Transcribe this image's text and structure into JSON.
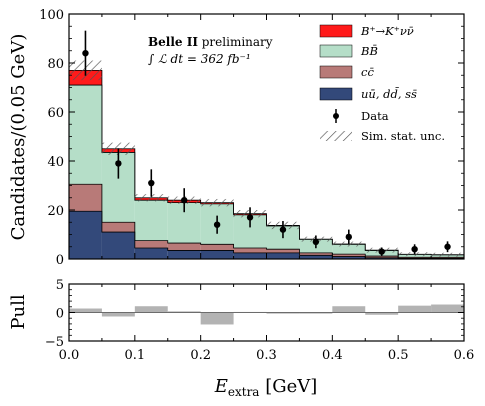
{
  "chart_data": [
    {
      "type": "bar",
      "stacked": true,
      "x_bin_edges": [
        0.0,
        0.05,
        0.1,
        0.15,
        0.2,
        0.25,
        0.3,
        0.35,
        0.4,
        0.45,
        0.5,
        0.55,
        0.6
      ],
      "xlim": [
        0.0,
        0.6
      ],
      "ylim": [
        0,
        100
      ],
      "ylabel": "Candidates/(0.05 GeV)",
      "y_ticks": [
        "0",
        "20",
        "40",
        "60",
        "80",
        "100"
      ],
      "annotation": {
        "line1_bold": "Belle II",
        "line1_rest": " preliminary",
        "line2": "∫ ℒ dt = 362 fb⁻¹"
      },
      "series": [
        {
          "name": "uū, dd̄, ss̄",
          "color": "#33497a",
          "values": [
            19.5,
            11.0,
            4.5,
            3.5,
            3.5,
            2.5,
            2.5,
            1.5,
            1.0,
            0.5,
            0.3,
            0.3
          ]
        },
        {
          "name": "cc̄",
          "color": "#b87a78",
          "values": [
            11.0,
            4.0,
            3.0,
            3.0,
            2.5,
            2.0,
            1.5,
            1.0,
            1.0,
            0.7,
            0.4,
            0.4
          ]
        },
        {
          "name": "BB̄",
          "color": "#b5dec8",
          "values": [
            40.5,
            28.5,
            16.5,
            16.5,
            16.5,
            13.5,
            9.5,
            5.5,
            4.0,
            2.3,
            1.2,
            1.0
          ]
        },
        {
          "name": "B⁺→K⁺νν̄",
          "color": "#ff1a1a",
          "values": [
            6.0,
            1.5,
            1.0,
            1.0,
            0.5,
            0.5,
            0.2,
            0.1,
            0.1,
            0.1,
            0.05,
            0.05
          ]
        }
      ],
      "sim_stat_unc": [
        4.0,
        2.5,
        1.5,
        1.5,
        1.5,
        1.5,
        1.5,
        1.0,
        1.0,
        1.0,
        0.8,
        0.8
      ],
      "data": {
        "name": "Data",
        "x": [
          0.025,
          0.075,
          0.125,
          0.175,
          0.225,
          0.275,
          0.325,
          0.375,
          0.425,
          0.475,
          0.525,
          0.575
        ],
        "y": [
          84,
          39,
          31,
          24,
          14,
          17,
          12,
          7,
          9,
          3,
          4,
          5
        ],
        "yerr": [
          9.2,
          6.2,
          5.6,
          4.9,
          3.7,
          4.1,
          3.5,
          2.6,
          3.0,
          1.7,
          2.0,
          2.2
        ]
      },
      "legend": {
        "position": "top-right",
        "entries": [
          "B⁺→K⁺νν̄",
          "BB̄",
          "cc̄",
          "uū, dd̄, ss̄",
          "Data",
          "Sim. stat. unc."
        ]
      }
    },
    {
      "type": "bar",
      "x_bin_edges": [
        0.0,
        0.05,
        0.1,
        0.15,
        0.2,
        0.25,
        0.3,
        0.35,
        0.4,
        0.45,
        0.5,
        0.55,
        0.6
      ],
      "xlim": [
        0.0,
        0.6
      ],
      "ylim": [
        -5,
        5
      ],
      "ylabel": "Pull",
      "xlabel": "E_extra [GeV]",
      "x_ticks": [
        "0.0",
        "0.1",
        "0.2",
        "0.3",
        "0.4",
        "0.5",
        "0.6"
      ],
      "y_ticks": [
        "−5",
        "0",
        "5"
      ],
      "values": [
        0.7,
        -0.7,
        1.1,
        0.2,
        -2.1,
        0.1,
        -0.2,
        -0.2,
        1.1,
        -0.4,
        1.2,
        1.4
      ],
      "color": "#b3b3b3"
    }
  ]
}
